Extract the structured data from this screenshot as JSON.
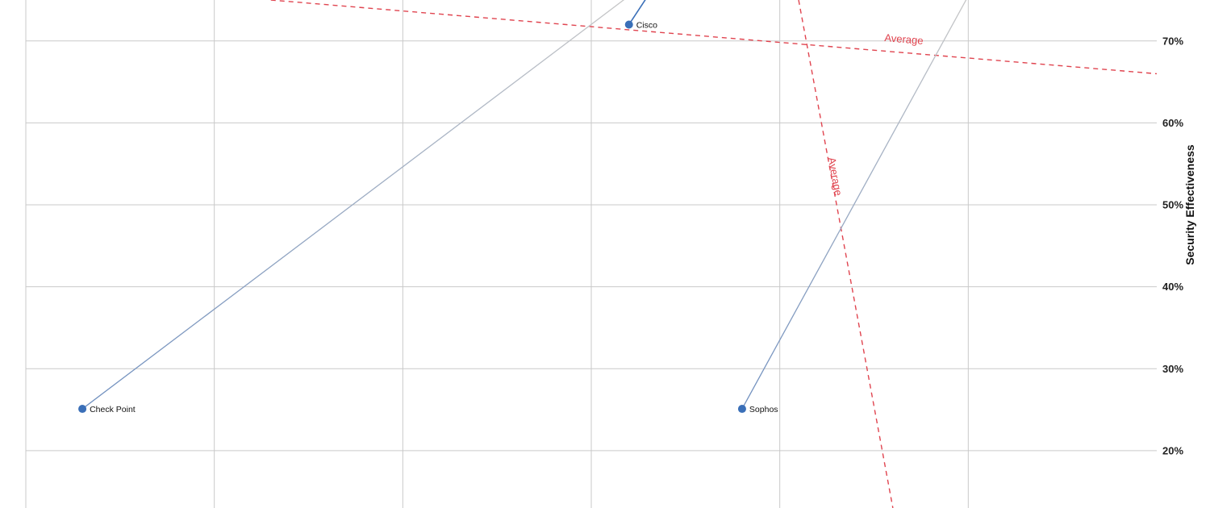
{
  "chart_data": {
    "type": "scatter",
    "ylabel": "Security Effectiveness",
    "ylim": [
      13,
      75
    ],
    "xlim": [
      0,
      6
    ],
    "y_ticks": [
      20,
      30,
      40,
      50,
      60,
      70
    ],
    "y_tick_labels": [
      "20%",
      "30%",
      "40%",
      "50%",
      "60%",
      "70%"
    ],
    "x_gridlines": [
      1,
      2,
      3,
      4,
      5
    ],
    "grid": true,
    "points": [
      {
        "label": "Check Point",
        "x": 0.3,
        "y": 25.1,
        "trail_to": {
          "x": 3.2,
          "y": 75.5
        }
      },
      {
        "label": "Cisco",
        "x": 3.2,
        "y": 72.0,
        "trail_to": {
          "x": 3.3,
          "y": 75.5
        }
      },
      {
        "label": "Sophos",
        "x": 3.8,
        "y": 25.1,
        "trail_to": {
          "x": 5.0,
          "y": 75.5
        }
      }
    ],
    "average_lines": [
      {
        "label": "Average",
        "from": {
          "x": 1.3,
          "y": 75.0
        },
        "to": {
          "x": 6.0,
          "y": 66.0
        }
      },
      {
        "label": "Average",
        "from": {
          "x": 4.1,
          "y": 75.0
        },
        "to": {
          "x": 4.6,
          "y": 13.0
        }
      }
    ],
    "colors": {
      "point": "#3a6fb8",
      "trail": "#6f8fbf",
      "trail_fade": "#c7c7c7",
      "average": "#e0444f",
      "grid": "#c9c9c9"
    }
  }
}
